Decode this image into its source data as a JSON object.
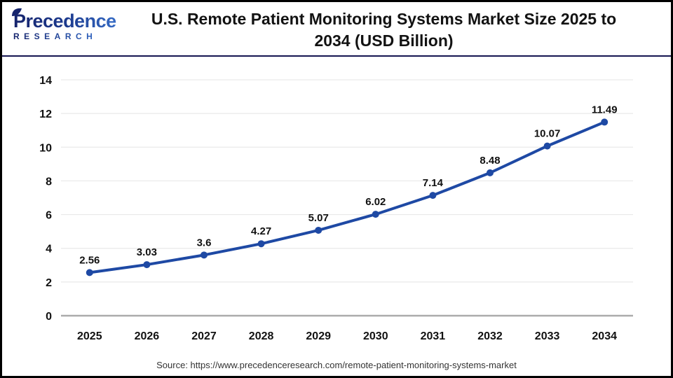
{
  "header": {
    "logo": {
      "line1": "Precedence",
      "line2": "RESEARCH"
    },
    "title_line1": "U.S. Remote Patient Monitoring Systems Market Size 2025 to",
    "title_line2": "2034 (USD Billion)"
  },
  "chart_data": {
    "type": "line",
    "title": "U.S. Remote Patient Monitoring Systems Market Size 2025 to 2034 (USD Billion)",
    "categories": [
      "2025",
      "2026",
      "2027",
      "2028",
      "2029",
      "2030",
      "2031",
      "2032",
      "2033",
      "2034"
    ],
    "series": [
      {
        "name": "U.S. Remote Patient Monitoring Systems Market Size (USD Billion)",
        "values": [
          2.56,
          3.03,
          3.6,
          4.27,
          5.07,
          6.02,
          7.14,
          8.48,
          10.07,
          11.49
        ],
        "point_labels": [
          "2.56",
          "3.03",
          "3.6",
          "4.27",
          "5.07",
          "6.02",
          "7.14",
          "8.48",
          "10.07",
          "11.49"
        ]
      }
    ],
    "xlabel": "",
    "ylabel": "",
    "ylim": [
      0,
      14
    ],
    "yticks": [
      0,
      2,
      4,
      6,
      8,
      10,
      12,
      14
    ],
    "grid": true,
    "legend_position": "none",
    "line_color": "#1e49a4",
    "marker_color": "#1e49a4",
    "gridline_color": "#e9e9e9",
    "baseline_color": "#ababab",
    "tick_label_color": "#111111",
    "data_label_color": "#111111"
  },
  "footer": {
    "source": "Source: https://www.precedenceresearch.com/remote-patient-monitoring-systems-market"
  }
}
